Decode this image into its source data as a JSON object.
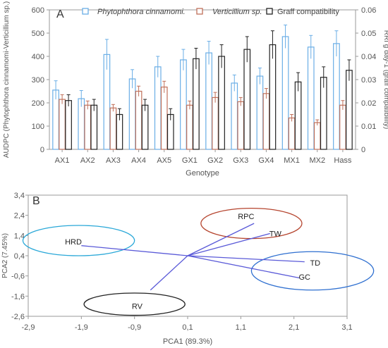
{
  "chart_data": [
    {
      "panel": "A",
      "type": "bar",
      "xlabel": "Genotype",
      "ylabel_left": "AUDPC (Phytophthora cinnamomi-Verticillium sp.)",
      "ylabel_right": "RRI g day-1 (graff compatibility)",
      "ylim_left": [
        0,
        600
      ],
      "ylim_right": [
        0,
        0.06
      ],
      "yticks_left": [
        "0",
        "100",
        "200",
        "300",
        "400",
        "500",
        "600"
      ],
      "yticks_right": [
        "0",
        "0.01",
        "0.02",
        "0.03",
        "0.04",
        "0.05",
        "0.06"
      ],
      "legend_position": "top",
      "categories": [
        "AX1",
        "AX2",
        "AX3",
        "AX4",
        "AX5",
        "GX1",
        "GX2",
        "GX3",
        "GX4",
        "MX1",
        "MX2",
        "Hass"
      ],
      "series": [
        {
          "name": "Phytophthora cinnamomi.",
          "axis": "left",
          "color": "#6aaee6",
          "values": [
            255,
            218,
            408,
            303,
            355,
            385,
            415,
            285,
            315,
            485,
            440,
            455
          ],
          "errors": [
            40,
            35,
            65,
            40,
            45,
            45,
            50,
            35,
            35,
            50,
            50,
            55
          ]
        },
        {
          "name": "Verticillium sp.",
          "axis": "left",
          "color": "#c0705a",
          "values": [
            215,
            190,
            178,
            250,
            268,
            190,
            223,
            205,
            240,
            135,
            115,
            190
          ],
          "errors": [
            20,
            18,
            15,
            22,
            25,
            18,
            22,
            18,
            22,
            15,
            12,
            20
          ]
        },
        {
          "name": "Graff compatibility",
          "axis": "right",
          "color": "#222222",
          "values": [
            0.021,
            0.019,
            0.015,
            0.019,
            0.015,
            0.039,
            0.04,
            0.043,
            0.045,
            0.029,
            0.031,
            0.034
          ],
          "errors": [
            0.0025,
            0.0025,
            0.0025,
            0.0025,
            0.0025,
            0.0045,
            0.005,
            0.0055,
            0.006,
            0.004,
            0.0045,
            0.0045
          ]
        }
      ]
    },
    {
      "panel": "B",
      "type": "scatter",
      "xlabel": "PCA1 (89.3%)",
      "ylabel": "PCA2 (7.45%)",
      "xlim": [
        -2.9,
        3.1
      ],
      "ylim": [
        -2.6,
        3.4
      ],
      "xticks": [
        "-2,9",
        "-1,9",
        "-0,9",
        "0,1",
        "1,1",
        "2,1",
        "3,1"
      ],
      "yticks": [
        "3,4",
        "2,4",
        "1,4",
        "0,4",
        "-0,6",
        "-1,6",
        "-2,6"
      ],
      "origin": [
        0.1,
        0.4
      ],
      "line_color": "#5a5ad8",
      "vectors": [
        {
          "label": "RPC",
          "x": 1.35,
          "y": 2.0
        },
        {
          "label": "TW",
          "x": 1.65,
          "y": 1.5
        },
        {
          "label": "TD",
          "x": 2.3,
          "y": 0.1
        },
        {
          "label": "GC",
          "x": 2.2,
          "y": -0.7
        },
        {
          "label": "HRD",
          "x": -1.9,
          "y": 0.9
        },
        {
          "label": "RV",
          "x": -0.6,
          "y": -1.3
        }
      ],
      "labels": [
        {
          "text": "RPC",
          "x": 1.2,
          "y": 2.35
        },
        {
          "text": "TW",
          "x": 1.75,
          "y": 1.5
        },
        {
          "text": "TD",
          "x": 2.5,
          "y": 0.05
        },
        {
          "text": "GC",
          "x": 2.3,
          "y": -0.65
        },
        {
          "text": "HRD",
          "x": -2.05,
          "y": 1.1
        },
        {
          "text": "RV",
          "x": -0.85,
          "y": -2.1
        }
      ],
      "groups": [
        {
          "color": "#b5442e",
          "cx": 1.3,
          "cy": 2.0,
          "rx": 0.95,
          "ry": 0.75
        },
        {
          "color": "#2aa8d8",
          "cx": -1.95,
          "cy": 1.15,
          "rx": 1.05,
          "ry": 0.75
        },
        {
          "color": "#2e6fd0",
          "cx": 2.45,
          "cy": -0.35,
          "rx": 1.15,
          "ry": 0.95
        },
        {
          "color": "#222222",
          "cx": -0.9,
          "cy": -2.0,
          "rx": 0.95,
          "ry": 0.55
        }
      ]
    }
  ],
  "panels": {
    "a_label": "A",
    "b_label": "B"
  }
}
